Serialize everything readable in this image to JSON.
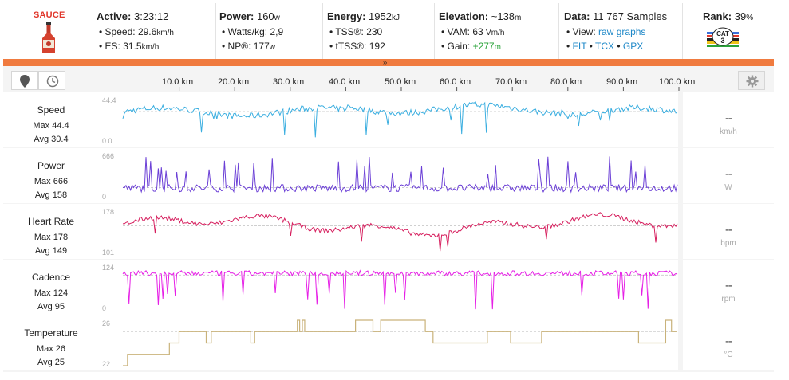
{
  "brand": "SAUCE",
  "header": {
    "active": {
      "label": "Active:",
      "value": "3:23:12",
      "speed_label": "Speed:",
      "speed_value": "29.6",
      "speed_unit": "km/h",
      "es_label": "ES:",
      "es_value": "31.5",
      "es_unit": "km/h"
    },
    "power": {
      "label": "Power:",
      "value": "160",
      "unit": "w",
      "wkg_label": "Watts/kg:",
      "wkg_value": "2,9",
      "np_label": "NP®:",
      "np_value": "177",
      "np_unit": "w"
    },
    "energy": {
      "label": "Energy:",
      "value": "1952",
      "unit": "kJ",
      "tss_label": "TSS®:",
      "tss_value": "230",
      "ttss_label": "tTSS®:",
      "ttss_value": "192"
    },
    "elevation": {
      "label": "Elevation:",
      "value": "~138",
      "unit": "m",
      "vam_label": "VAM:",
      "vam_value": "63",
      "vam_unit": "Vm/h",
      "gain_label": "Gain:",
      "gain_value": "+277",
      "gain_unit": "m"
    },
    "data": {
      "label": "Data:",
      "value": "11 767 Samples",
      "view_label": "View:",
      "view_raw": "raw",
      "view_graphs": "graphs",
      "fit": "FIT",
      "tcx": "TCX",
      "gpx": "GPX"
    },
    "rank": {
      "label": "Rank:",
      "value": "39",
      "unit": "%",
      "badge_text": "CAT",
      "badge_num": "3"
    }
  },
  "toolbar": {
    "map_icon": "map-pin-icon",
    "clock_icon": "clock-icon",
    "gear_icon": "gear-icon"
  },
  "x_axis": {
    "ticks": [
      "10.0 km",
      "20.0 km",
      "30.0 km",
      "40.0 km",
      "50.0 km",
      "60.0 km",
      "70.0 km",
      "80.0 km",
      "90.0 km",
      "100.0 km"
    ]
  },
  "colors": {
    "accent": "#f07b3f",
    "speed": "#3aaee0",
    "power": "#6b3fd6",
    "hr": "#d61f5e",
    "cadence": "#e61fe6",
    "temp": "#c9b27a"
  },
  "rows": [
    {
      "name": "Speed",
      "max_label": "Max 44.4",
      "avg_label": "Avg 30.4",
      "y_top": "44.4",
      "y_bot": "0.0",
      "current": "--",
      "unit": "km/h",
      "avg": 30.4,
      "min": 0,
      "max": 44.4
    },
    {
      "name": "Power",
      "max_label": "Max 666",
      "avg_label": "Avg 158",
      "y_top": "666",
      "y_bot": "0",
      "current": "--",
      "unit": "W",
      "avg": 158,
      "min": 0,
      "max": 666
    },
    {
      "name": "Heart Rate",
      "max_label": "Max 178",
      "avg_label": "Avg 149",
      "y_top": "178",
      "y_bot": "101",
      "current": "--",
      "unit": "bpm",
      "avg": 149,
      "min": 101,
      "max": 178
    },
    {
      "name": "Cadence",
      "max_label": "Max 124",
      "avg_label": "Avg 95",
      "y_top": "124",
      "y_bot": "0",
      "current": "--",
      "unit": "rpm",
      "avg": 95,
      "min": 0,
      "max": 124
    },
    {
      "name": "Temperature",
      "max_label": "Max 26",
      "avg_label": "Avg 25",
      "y_top": "26",
      "y_bot": "22",
      "current": "--",
      "unit": "°C",
      "avg": 25,
      "min": 22,
      "max": 26
    }
  ],
  "temperature_steps": [
    {
      "d": 0,
      "t": 22
    },
    {
      "d": 1.2,
      "t": 23
    },
    {
      "d": 12,
      "t": 24
    },
    {
      "d": 14.5,
      "t": 25
    },
    {
      "d": 21.5,
      "t": 24
    },
    {
      "d": 22.8,
      "t": 25
    },
    {
      "d": 33,
      "t": 24
    },
    {
      "d": 34,
      "t": 25
    },
    {
      "d": 45,
      "t": 26
    },
    {
      "d": 45.6,
      "t": 25
    },
    {
      "d": 46.3,
      "t": 26
    },
    {
      "d": 46.9,
      "t": 25
    },
    {
      "d": 60,
      "t": 26
    },
    {
      "d": 64.5,
      "t": 25
    },
    {
      "d": 66.5,
      "t": 26
    },
    {
      "d": 78,
      "t": 25
    },
    {
      "d": 80,
      "t": 24
    },
    {
      "d": 94,
      "t": 25
    },
    {
      "d": 100,
      "t": 24
    },
    {
      "d": 108,
      "t": 25
    },
    {
      "d": 133,
      "t": 24
    },
    {
      "d": 140,
      "t": 26
    },
    {
      "d": 141.5,
      "t": 25
    }
  ]
}
